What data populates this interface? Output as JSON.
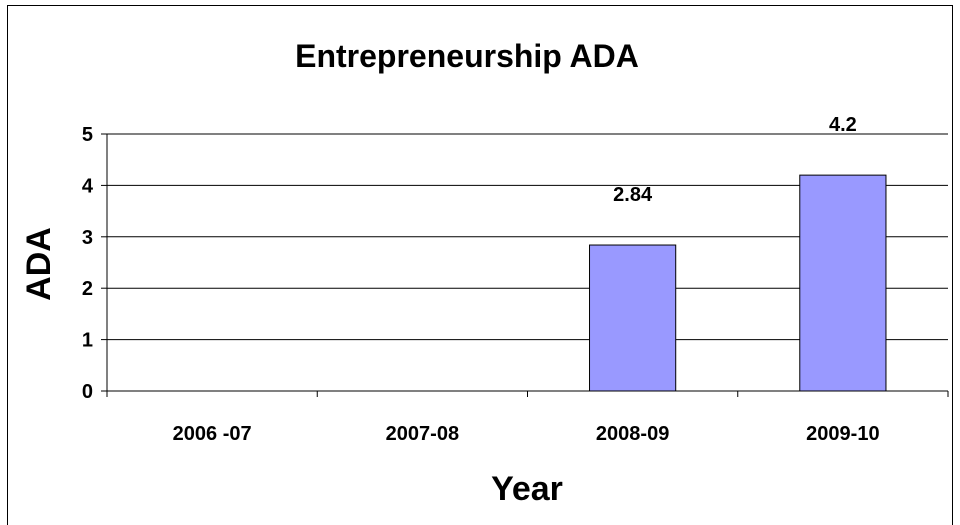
{
  "chart_data": {
    "type": "bar",
    "title": "Entrepreneurship ADA",
    "xlabel": "Year",
    "ylabel": "ADA",
    "categories": [
      "2006 -07",
      "2007-08",
      "2008-09",
      "2009-10"
    ],
    "values": [
      null,
      null,
      2.84,
      4.2
    ],
    "data_labels": [
      "",
      "",
      "2.84",
      "4.2"
    ],
    "ylim": [
      0,
      5
    ],
    "yticks": [
      "0",
      "1",
      "2",
      "3",
      "4",
      "5"
    ],
    "grid": true,
    "legend": "none",
    "colors": {
      "bar_fill": "#9999ff",
      "bar_stroke": "#000000",
      "grid": "#000000"
    }
  }
}
